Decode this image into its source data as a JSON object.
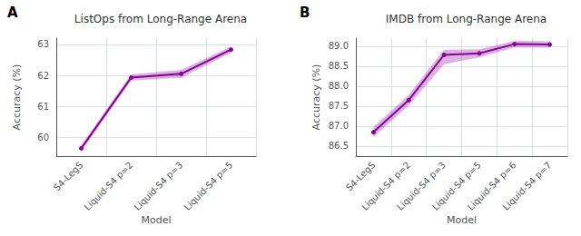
{
  "chart_data": [
    {
      "type": "line",
      "panel_label": "A",
      "title": "ListOps from Long-Range Arena",
      "xlabel": "Model",
      "ylabel": "Accuracy (%)",
      "categories": [
        "S4-LegS",
        "Liquid-S4 p=2",
        "Liquid-S4 p=3",
        "Liquid-S4 p=5"
      ],
      "values": [
        59.65,
        61.93,
        62.05,
        62.83
      ],
      "lower": [
        59.55,
        61.83,
        61.92,
        62.73
      ],
      "upper": [
        59.75,
        62.03,
        62.18,
        62.93
      ],
      "color": "#880099",
      "marker": "circle",
      "ylim": [
        59.4,
        63.2
      ],
      "yticks": [
        60,
        61,
        62,
        63
      ],
      "grid": true
    },
    {
      "type": "line",
      "panel_label": "B",
      "title": "IMDB from Long-Range Arena",
      "xlabel": "Model",
      "ylabel": "Accuracy (%)",
      "categories": [
        "S4-LegS",
        "Liquid-S4 p=2",
        "Liquid-S4 p=3",
        "Liquid-S4 p=5",
        "Liquid-S4 p=6",
        "Liquid-S4 p=7"
      ],
      "values": [
        86.85,
        87.65,
        88.78,
        88.82,
        89.05,
        89.04
      ],
      "lower": [
        86.72,
        87.52,
        88.55,
        88.72,
        88.97,
        88.96
      ],
      "upper": [
        86.98,
        87.78,
        88.91,
        88.92,
        89.13,
        89.12
      ],
      "color": "#880099",
      "marker": "circle",
      "ylim": [
        86.25,
        89.2
      ],
      "yticks": [
        86.5,
        {
          "value": 87.0,
          "label": "87.0"
        },
        87.5,
        {
          "value": 88.0,
          "label": "88.0"
        },
        88.5,
        {
          "value": 89.0,
          "label": "89.0"
        }
      ],
      "grid": true
    }
  ]
}
